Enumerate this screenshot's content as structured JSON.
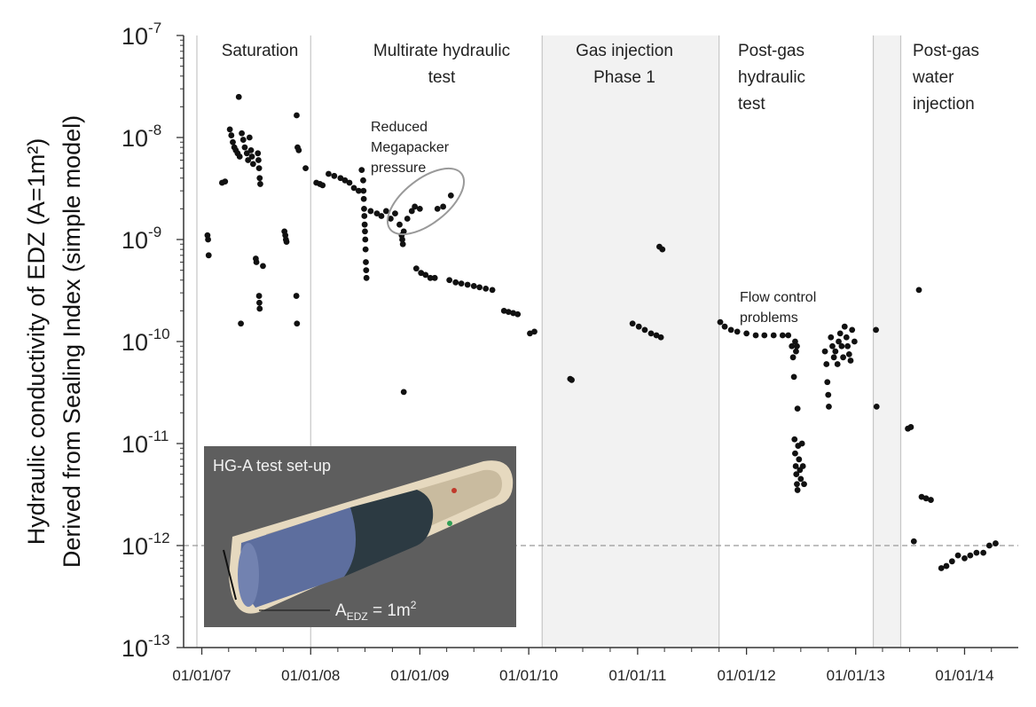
{
  "chart_data": {
    "type": "scatter",
    "ylabel_line1": "Hydraulic conductivity of EDZ (A=1m²)",
    "ylabel_line2": "Derived from Sealing Index (simple model)",
    "yscale": "log",
    "ylim": [
      1e-13,
      1e-07
    ],
    "y_tick_labels": [
      {
        "base": "10",
        "exp": "-7"
      },
      {
        "base": "10",
        "exp": "-8"
      },
      {
        "base": "10",
        "exp": "-9"
      },
      {
        "base": "10",
        "exp": "-10"
      },
      {
        "base": "10",
        "exp": "-11"
      },
      {
        "base": "10",
        "exp": "-12"
      },
      {
        "base": "10",
        "exp": "-13"
      }
    ],
    "x_tick_labels": [
      "01/01/07",
      "01/01/08",
      "01/01/09",
      "01/01/10",
      "01/01/11",
      "01/01/12",
      "01/01/13",
      "01/01/14"
    ],
    "xlim": [
      "2006-11-01",
      "2014-06-30"
    ],
    "phases": [
      {
        "label_lines": [
          "Saturation"
        ],
        "start": "2006-11-01",
        "end": "2008-01-01",
        "shaded": false
      },
      {
        "label_lines": [
          "Multirate hydraulic",
          "test"
        ],
        "start": "2008-01-01",
        "end": "2010-02-15",
        "shaded": false
      },
      {
        "label_lines": [
          "Gas injection",
          "Phase 1"
        ],
        "start": "2010-02-15",
        "end": "2011-10-01",
        "shaded": true
      },
      {
        "label_lines": [
          "Post-gas",
          "hydraulic",
          "test"
        ],
        "start": "2011-10-01",
        "end": "2013-03-01",
        "shaded": false
      },
      {
        "label_lines": [],
        "start": "2013-03-01",
        "end": "2013-06-01",
        "shaded": true
      },
      {
        "label_lines": [
          "Post-gas",
          "water",
          "injection"
        ],
        "start": "2013-06-01",
        "end": "2014-06-30",
        "shaded": false
      }
    ],
    "reference_line": 1e-12,
    "annotations": [
      {
        "lines": [
          "Reduced",
          "Megapacker",
          "pressure"
        ]
      },
      {
        "lines": [
          "Flow control",
          "problems"
        ]
      }
    ],
    "series": [
      {
        "marker_color": "#111111",
        "points": [
          {
            "x": "2007-01-20",
            "y": 1.1e-09
          },
          {
            "x": "2007-01-22",
            "y": 1e-09
          },
          {
            "x": "2007-01-24",
            "y": 7e-10
          },
          {
            "x": "2007-03-10",
            "y": 3.6e-09
          },
          {
            "x": "2007-03-20",
            "y": 3.7e-09
          },
          {
            "x": "2007-04-05",
            "y": 1.2e-08
          },
          {
            "x": "2007-04-10",
            "y": 1.05e-08
          },
          {
            "x": "2007-04-15",
            "y": 9e-09
          },
          {
            "x": "2007-04-20",
            "y": 8e-09
          },
          {
            "x": "2007-04-25",
            "y": 7.5e-09
          },
          {
            "x": "2007-05-01",
            "y": 7e-09
          },
          {
            "x": "2007-05-05",
            "y": 2.5e-08
          },
          {
            "x": "2007-05-08",
            "y": 6.5e-09
          },
          {
            "x": "2007-05-12",
            "y": 1.5e-10
          },
          {
            "x": "2007-05-15",
            "y": 1.1e-08
          },
          {
            "x": "2007-05-20",
            "y": 9.5e-09
          },
          {
            "x": "2007-05-25",
            "y": 8e-09
          },
          {
            "x": "2007-06-01",
            "y": 7e-09
          },
          {
            "x": "2007-06-05",
            "y": 6e-09
          },
          {
            "x": "2007-06-10",
            "y": 1e-08
          },
          {
            "x": "2007-06-15",
            "y": 7.5e-09
          },
          {
            "x": "2007-06-18",
            "y": 6.5e-09
          },
          {
            "x": "2007-06-22",
            "y": 5.5e-09
          },
          {
            "x": "2007-07-01",
            "y": 6.5e-10
          },
          {
            "x": "2007-07-03",
            "y": 6e-10
          },
          {
            "x": "2007-07-08",
            "y": 7e-09
          },
          {
            "x": "2007-07-10",
            "y": 6e-09
          },
          {
            "x": "2007-07-12",
            "y": 5e-09
          },
          {
            "x": "2007-07-14",
            "y": 4e-09
          },
          {
            "x": "2007-07-16",
            "y": 3.5e-09
          },
          {
            "x": "2007-07-12",
            "y": 2.8e-10
          },
          {
            "x": "2007-07-13",
            "y": 2.4e-10
          },
          {
            "x": "2007-07-14",
            "y": 2.1e-10
          },
          {
            "x": "2007-07-25",
            "y": 5.5e-10
          },
          {
            "x": "2007-10-05",
            "y": 1.2e-09
          },
          {
            "x": "2007-10-08",
            "y": 1.1e-09
          },
          {
            "x": "2007-10-10",
            "y": 1e-09
          },
          {
            "x": "2007-10-12",
            "y": 9.5e-10
          },
          {
            "x": "2007-11-15",
            "y": 1.65e-08
          },
          {
            "x": "2007-11-18",
            "y": 8e-09
          },
          {
            "x": "2007-11-22",
            "y": 7.5e-09
          },
          {
            "x": "2007-11-14",
            "y": 2.8e-10
          },
          {
            "x": "2007-11-16",
            "y": 1.5e-10
          },
          {
            "x": "2007-12-15",
            "y": 5e-09
          },
          {
            "x": "2008-01-20",
            "y": 3.6e-09
          },
          {
            "x": "2008-02-01",
            "y": 3.5e-09
          },
          {
            "x": "2008-02-10",
            "y": 3.4e-09
          },
          {
            "x": "2008-03-01",
            "y": 4.4e-09
          },
          {
            "x": "2008-03-20",
            "y": 4.2e-09
          },
          {
            "x": "2008-04-10",
            "y": 4e-09
          },
          {
            "x": "2008-04-25",
            "y": 3.8e-09
          },
          {
            "x": "2008-05-10",
            "y": 3.6e-09
          },
          {
            "x": "2008-05-25",
            "y": 3.2e-09
          },
          {
            "x": "2008-06-10",
            "y": 3e-09
          },
          {
            "x": "2008-06-20",
            "y": 4.8e-09
          },
          {
            "x": "2008-06-25",
            "y": 3.8e-09
          },
          {
            "x": "2008-06-26",
            "y": 3e-09
          },
          {
            "x": "2008-06-27",
            "y": 2.5e-09
          },
          {
            "x": "2008-06-28",
            "y": 2e-09
          },
          {
            "x": "2008-06-29",
            "y": 1.7e-09
          },
          {
            "x": "2008-06-30",
            "y": 1.4e-09
          },
          {
            "x": "2008-07-01",
            "y": 1.2e-09
          },
          {
            "x": "2008-07-02",
            "y": 1e-09
          },
          {
            "x": "2008-07-03",
            "y": 8e-10
          },
          {
            "x": "2008-07-04",
            "y": 6e-10
          },
          {
            "x": "2008-07-05",
            "y": 5e-10
          },
          {
            "x": "2008-07-06",
            "y": 4.2e-10
          },
          {
            "x": "2008-07-20",
            "y": 1.9e-09
          },
          {
            "x": "2008-08-10",
            "y": 1.8e-09
          },
          {
            "x": "2008-08-25",
            "y": 1.7e-09
          },
          {
            "x": "2008-09-10",
            "y": 1.9e-09
          },
          {
            "x": "2008-09-25",
            "y": 1.6e-09
          },
          {
            "x": "2008-10-10",
            "y": 1.8e-09
          },
          {
            "x": "2008-10-25",
            "y": 1.4e-09
          },
          {
            "x": "2008-11-01",
            "y": 1.1e-09
          },
          {
            "x": "2008-11-03",
            "y": 1e-09
          },
          {
            "x": "2008-11-05",
            "y": 9e-10
          },
          {
            "x": "2008-11-08",
            "y": 1.2e-09
          },
          {
            "x": "2008-11-08",
            "y": 3.2e-11
          },
          {
            "x": "2008-11-20",
            "y": 1.6e-09
          },
          {
            "x": "2008-12-05",
            "y": 1.9e-09
          },
          {
            "x": "2008-12-15",
            "y": 2.1e-09
          },
          {
            "x": "2009-01-01",
            "y": 2e-09
          },
          {
            "x": "2009-03-01",
            "y": 2e-09
          },
          {
            "x": "2009-03-20",
            "y": 2.1e-09
          },
          {
            "x": "2009-04-15",
            "y": 2.7e-09
          },
          {
            "x": "2008-12-20",
            "y": 5.2e-10
          },
          {
            "x": "2009-01-05",
            "y": 4.7e-10
          },
          {
            "x": "2009-01-20",
            "y": 4.5e-10
          },
          {
            "x": "2009-02-05",
            "y": 4.2e-10
          },
          {
            "x": "2009-02-20",
            "y": 4.2e-10
          },
          {
            "x": "2009-04-10",
            "y": 4e-10
          },
          {
            "x": "2009-05-01",
            "y": 3.8e-10
          },
          {
            "x": "2009-05-20",
            "y": 3.7e-10
          },
          {
            "x": "2009-06-10",
            "y": 3.6e-10
          },
          {
            "x": "2009-07-01",
            "y": 3.5e-10
          },
          {
            "x": "2009-07-20",
            "y": 3.4e-10
          },
          {
            "x": "2009-08-10",
            "y": 3.3e-10
          },
          {
            "x": "2009-09-01",
            "y": 3.2e-10
          },
          {
            "x": "2009-10-10",
            "y": 2e-10
          },
          {
            "x": "2009-10-25",
            "y": 1.95e-10
          },
          {
            "x": "2009-11-10",
            "y": 1.9e-10
          },
          {
            "x": "2009-11-25",
            "y": 1.85e-10
          },
          {
            "x": "2010-01-05",
            "y": 1.2e-10
          },
          {
            "x": "2010-01-20",
            "y": 1.25e-10
          },
          {
            "x": "2010-05-20",
            "y": 4.3e-11
          },
          {
            "x": "2010-05-25",
            "y": 4.2e-11
          },
          {
            "x": "2010-12-15",
            "y": 1.5e-10
          },
          {
            "x": "2011-01-05",
            "y": 1.4e-10
          },
          {
            "x": "2011-01-25",
            "y": 1.3e-10
          },
          {
            "x": "2011-02-15",
            "y": 1.2e-10
          },
          {
            "x": "2011-03-05",
            "y": 1.15e-10
          },
          {
            "x": "2011-03-20",
            "y": 1.1e-10
          },
          {
            "x": "2011-03-15",
            "y": 8.5e-10
          },
          {
            "x": "2011-03-25",
            "y": 8e-10
          },
          {
            "x": "2011-10-05",
            "y": 1.55e-10
          },
          {
            "x": "2011-10-20",
            "y": 1.4e-10
          },
          {
            "x": "2011-11-10",
            "y": 1.3e-10
          },
          {
            "x": "2011-12-01",
            "y": 1.25e-10
          },
          {
            "x": "2012-01-01",
            "y": 1.2e-10
          },
          {
            "x": "2012-02-01",
            "y": 1.15e-10
          },
          {
            "x": "2012-03-01",
            "y": 1.15e-10
          },
          {
            "x": "2012-04-01",
            "y": 1.15e-10
          },
          {
            "x": "2012-05-01",
            "y": 1.15e-10
          },
          {
            "x": "2012-05-20",
            "y": 1.15e-10
          },
          {
            "x": "2012-06-01",
            "y": 9e-11
          },
          {
            "x": "2012-06-05",
            "y": 7e-11
          },
          {
            "x": "2012-06-08",
            "y": 4.5e-11
          },
          {
            "x": "2012-06-12",
            "y": 1e-10
          },
          {
            "x": "2012-06-15",
            "y": 8e-11
          },
          {
            "x": "2012-06-18",
            "y": 9e-11
          },
          {
            "x": "2012-06-10",
            "y": 1.1e-11
          },
          {
            "x": "2012-06-12",
            "y": 8e-12
          },
          {
            "x": "2012-06-14",
            "y": 6e-12
          },
          {
            "x": "2012-06-16",
            "y": 5e-12
          },
          {
            "x": "2012-06-18",
            "y": 4e-12
          },
          {
            "x": "2012-06-20",
            "y": 3.5e-12
          },
          {
            "x": "2012-06-22",
            "y": 9.5e-12
          },
          {
            "x": "2012-06-25",
            "y": 7e-12
          },
          {
            "x": "2012-06-28",
            "y": 5.5e-12
          },
          {
            "x": "2012-07-01",
            "y": 4.5e-12
          },
          {
            "x": "2012-07-05",
            "y": 1e-11
          },
          {
            "x": "2012-07-08",
            "y": 6e-12
          },
          {
            "x": "2012-07-12",
            "y": 4e-12
          },
          {
            "x": "2012-06-20",
            "y": 2.2e-11
          },
          {
            "x": "2012-09-20",
            "y": 8e-11
          },
          {
            "x": "2012-09-25",
            "y": 6e-11
          },
          {
            "x": "2012-09-28",
            "y": 4e-11
          },
          {
            "x": "2012-10-01",
            "y": 3e-11
          },
          {
            "x": "2012-10-03",
            "y": 2.3e-11
          },
          {
            "x": "2012-10-10",
            "y": 1.1e-10
          },
          {
            "x": "2012-10-15",
            "y": 9e-11
          },
          {
            "x": "2012-10-20",
            "y": 7e-11
          },
          {
            "x": "2012-10-25",
            "y": 8e-11
          },
          {
            "x": "2012-11-01",
            "y": 6e-11
          },
          {
            "x": "2012-11-05",
            "y": 1e-10
          },
          {
            "x": "2012-11-10",
            "y": 1.2e-10
          },
          {
            "x": "2012-11-15",
            "y": 9e-11
          },
          {
            "x": "2012-11-20",
            "y": 7e-11
          },
          {
            "x": "2012-11-25",
            "y": 1.4e-10
          },
          {
            "x": "2012-12-01",
            "y": 1.1e-10
          },
          {
            "x": "2012-12-05",
            "y": 9e-11
          },
          {
            "x": "2012-12-10",
            "y": 7.5e-11
          },
          {
            "x": "2012-12-15",
            "y": 6.5e-11
          },
          {
            "x": "2012-12-20",
            "y": 1.3e-10
          },
          {
            "x": "2012-12-28",
            "y": 1e-10
          },
          {
            "x": "2013-03-10",
            "y": 1.3e-10
          },
          {
            "x": "2013-03-12",
            "y": 2.3e-11
          },
          {
            "x": "2013-08-01",
            "y": 3.2e-10
          },
          {
            "x": "2013-06-25",
            "y": 1.4e-11
          },
          {
            "x": "2013-07-05",
            "y": 1.45e-11
          },
          {
            "x": "2013-07-15",
            "y": 1.1e-12
          },
          {
            "x": "2013-08-10",
            "y": 3e-12
          },
          {
            "x": "2013-08-25",
            "y": 2.9e-12
          },
          {
            "x": "2013-09-10",
            "y": 2.8e-12
          },
          {
            "x": "2013-10-15",
            "y": 6e-13
          },
          {
            "x": "2013-11-01",
            "y": 6.3e-13
          },
          {
            "x": "2013-11-20",
            "y": 7e-13
          },
          {
            "x": "2013-12-10",
            "y": 8e-13
          },
          {
            "x": "2014-01-01",
            "y": 7.5e-13
          },
          {
            "x": "2014-01-20",
            "y": 8e-13
          },
          {
            "x": "2014-02-10",
            "y": 8.5e-13
          },
          {
            "x": "2014-03-05",
            "y": 8.5e-13
          },
          {
            "x": "2014-03-25",
            "y": 1e-12
          },
          {
            "x": "2014-04-15",
            "y": 1.05e-12
          }
        ]
      }
    ],
    "grid": false
  },
  "inset": {
    "title": "HG-A test set-up",
    "area_label_base": "A",
    "area_label_sub": "EDZ",
    "area_label_rest": " = 1m",
    "area_label_sup": "2",
    "background_color": "#5e5e5e",
    "tube_color": "#e6d9bf",
    "packer_color": "#5d6e9e",
    "dark_packer_color": "#2c3a42"
  },
  "colors": {
    "shaded_phase": "#f2f2f2",
    "separator": "#c6c6c6",
    "ellipse": "#999999",
    "reference_line": "#999999"
  }
}
